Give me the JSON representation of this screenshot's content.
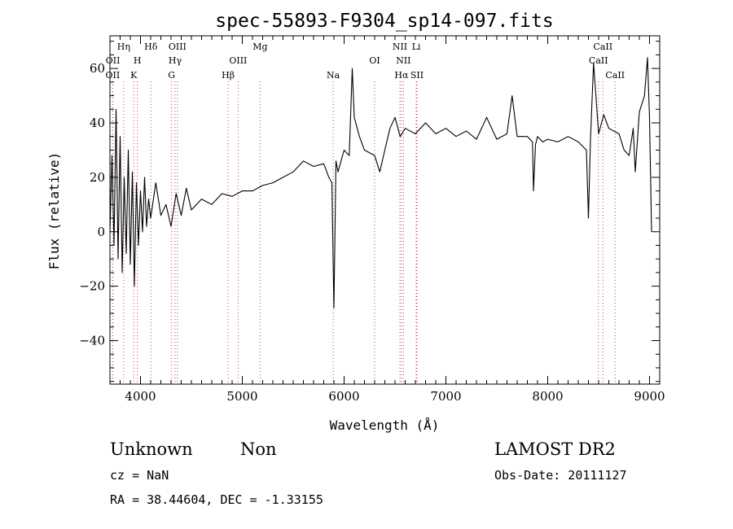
{
  "chart_data": {
    "type": "line",
    "title": "spec-55893-F9304_sp14-097.fits",
    "xlabel": "Wavelength (Å)",
    "ylabel": "Flux (relative)",
    "xlim": [
      3700,
      9100
    ],
    "ylim": [
      -56,
      72
    ],
    "x_ticks": [
      4000,
      5000,
      6000,
      7000,
      8000,
      9000
    ],
    "y_ticks": [
      -40,
      -20,
      0,
      20,
      40,
      60
    ],
    "grid": false,
    "series": [
      {
        "x": [
          3700,
          3720,
          3740,
          3760,
          3780,
          3800,
          3820,
          3840,
          3860,
          3880,
          3900,
          3920,
          3940,
          3960,
          3980,
          4000,
          4020,
          4040,
          4060,
          4080,
          4100,
          4150,
          4200,
          4250,
          4300,
          4350,
          4400,
          4450,
          4500,
          4600,
          4700,
          4800,
          4900,
          5000,
          5100,
          5200,
          5300,
          5400,
          5500,
          5600,
          5700,
          5800,
          5850,
          5880,
          5900,
          5920,
          5940,
          6000,
          6050,
          6080,
          6100,
          6150,
          6200,
          6300,
          6350,
          6400,
          6450,
          6500,
          6550,
          6600,
          6700,
          6800,
          6900,
          7000,
          7100,
          7200,
          7300,
          7400,
          7500,
          7600,
          7650,
          7700,
          7800,
          7850,
          7860,
          7880,
          7900,
          7950,
          8000,
          8100,
          8200,
          8300,
          8380,
          8400,
          8420,
          8450,
          8500,
          8550,
          8600,
          8700,
          8750,
          8800,
          8840,
          8860,
          8900,
          8950,
          8980,
          9000,
          9010,
          9020
        ],
        "y": [
          0,
          28,
          -5,
          45,
          -10,
          35,
          -15,
          20,
          -8,
          30,
          -12,
          22,
          -20,
          18,
          -5,
          15,
          0,
          20,
          2,
          12,
          5,
          18,
          6,
          10,
          2,
          14,
          6,
          16,
          8,
          12,
          10,
          14,
          13,
          15,
          15,
          17,
          18,
          20,
          22,
          26,
          24,
          25,
          20,
          18,
          -28,
          26,
          22,
          30,
          28,
          60,
          42,
          35,
          30,
          28,
          22,
          30,
          38,
          42,
          35,
          38,
          36,
          40,
          36,
          38,
          35,
          37,
          34,
          42,
          34,
          36,
          50,
          35,
          35,
          33,
          15,
          32,
          35,
          33,
          34,
          33,
          35,
          33,
          30,
          5,
          34,
          62,
          36,
          43,
          38,
          36,
          30,
          28,
          38,
          22,
          44,
          50,
          64,
          42,
          20,
          0
        ]
      }
    ],
    "line_markers": [
      {
        "label": "OII",
        "x": 3727,
        "row": 2
      },
      {
        "label": "OII",
        "x": 3729,
        "row": 1
      },
      {
        "label": "Hη",
        "x": 3835,
        "row": 0
      },
      {
        "label": "H",
        "x": 3969,
        "row": 1
      },
      {
        "label": "K",
        "x": 3934,
        "row": 2
      },
      {
        "label": "Hδ",
        "x": 4102,
        "row": 0
      },
      {
        "label": "OIII",
        "x": 4363,
        "row": 0
      },
      {
        "label": "Hγ",
        "x": 4340,
        "row": 1
      },
      {
        "label": "G",
        "x": 4305,
        "row": 2
      },
      {
        "label": "Hβ",
        "x": 4861,
        "row": 2
      },
      {
        "label": "OIII",
        "x": 4959,
        "row": 1
      },
      {
        "label": "Mg",
        "x": 5175,
        "row": 0
      },
      {
        "label": "Na",
        "x": 5893,
        "row": 2
      },
      {
        "label": "OI",
        "x": 6300,
        "row": 1
      },
      {
        "label": "NII",
        "x": 6548,
        "row": 0
      },
      {
        "label": "NII",
        "x": 6583,
        "row": 1
      },
      {
        "label": "Hα",
        "x": 6563,
        "row": 2
      },
      {
        "label": "Li",
        "x": 6708,
        "row": 0
      },
      {
        "label": "SII",
        "x": 6716,
        "row": 2
      },
      {
        "label": "CaII",
        "x": 8498,
        "row": 1
      },
      {
        "label": "CaII",
        "x": 8542,
        "row": 0
      },
      {
        "label": "CaII",
        "x": 8662,
        "row": 2
      }
    ]
  },
  "footer": {
    "class_label": "Unknown",
    "subclass_label": "Non",
    "survey": "LAMOST DR2",
    "cz": "cz = NaN",
    "obs_date": "Obs-Date: 20111127",
    "coords": "RA =  38.44604, DEC =  -1.33155"
  }
}
